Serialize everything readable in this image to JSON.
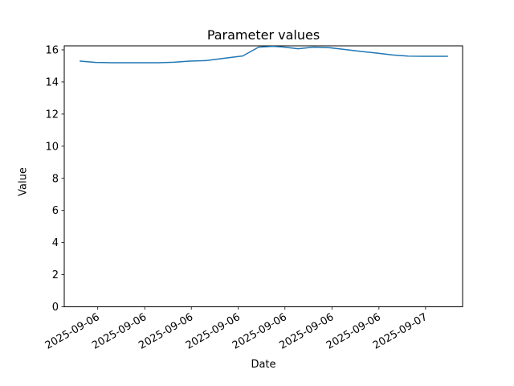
{
  "chart_data": {
    "type": "line",
    "title": "Parameter values",
    "xlabel": "Date",
    "ylabel": "Value",
    "x_tick_labels": [
      "2025-09-06",
      "2025-09-06",
      "2025-09-06",
      "2025-09-06",
      "2025-09-06",
      "2025-09-06",
      "2025-09-06",
      "2025-09-07"
    ],
    "x_tick_positions": [
      0.084,
      0.202,
      0.319,
      0.437,
      0.554,
      0.672,
      0.79,
      0.907
    ],
    "y_ticks": [
      0,
      2,
      4,
      6,
      8,
      10,
      12,
      14,
      16
    ],
    "ylim": [
      0,
      16.25
    ],
    "grid": false,
    "legend": "none",
    "series": [
      {
        "name": "parameter-values-line",
        "color": "#1f77b4",
        "points": [
          {
            "x": 0.04,
            "y": 15.3
          },
          {
            "x": 0.079,
            "y": 15.22
          },
          {
            "x": 0.119,
            "y": 15.2
          },
          {
            "x": 0.157,
            "y": 15.2
          },
          {
            "x": 0.198,
            "y": 15.2
          },
          {
            "x": 0.236,
            "y": 15.2
          },
          {
            "x": 0.276,
            "y": 15.23
          },
          {
            "x": 0.315,
            "y": 15.3
          },
          {
            "x": 0.355,
            "y": 15.33
          },
          {
            "x": 0.393,
            "y": 15.45
          },
          {
            "x": 0.431,
            "y": 15.57
          },
          {
            "x": 0.448,
            "y": 15.62
          },
          {
            "x": 0.488,
            "y": 16.17
          },
          {
            "x": 0.524,
            "y": 16.22
          },
          {
            "x": 0.548,
            "y": 16.18
          },
          {
            "x": 0.587,
            "y": 16.07
          },
          {
            "x": 0.627,
            "y": 16.17
          },
          {
            "x": 0.667,
            "y": 16.13
          },
          {
            "x": 0.706,
            "y": 16.02
          },
          {
            "x": 0.746,
            "y": 15.9
          },
          {
            "x": 0.784,
            "y": 15.8
          },
          {
            "x": 0.825,
            "y": 15.68
          },
          {
            "x": 0.863,
            "y": 15.61
          },
          {
            "x": 0.901,
            "y": 15.6
          },
          {
            "x": 0.942,
            "y": 15.6
          },
          {
            "x": 0.962,
            "y": 15.6
          }
        ]
      }
    ],
    "colors": {
      "line": "#1f77b4",
      "axis": "#000000",
      "text": "#000000",
      "background": "#ffffff"
    }
  }
}
